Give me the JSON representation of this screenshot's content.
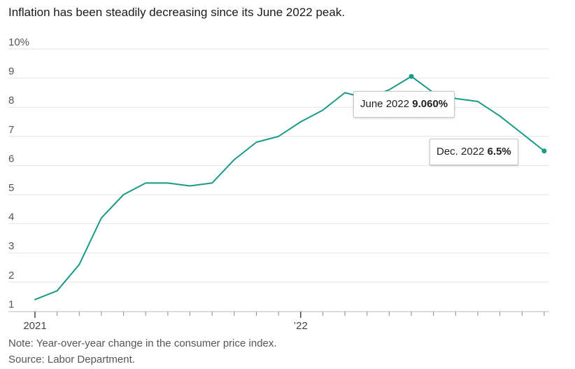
{
  "header": {
    "title": "Inflation has been steadily decreasing since its June 2022 peak."
  },
  "chart_data": {
    "type": "line",
    "title": "Inflation has been steadily decreasing since its June 2022 peak.",
    "ylim": [
      1,
      10
    ],
    "y_ticks": [
      1,
      2,
      3,
      4,
      5,
      6,
      7,
      8,
      9,
      10
    ],
    "y_tick_labels": [
      "1",
      "2",
      "3",
      "4",
      "5",
      "6",
      "7",
      "8",
      "9",
      "10%"
    ],
    "x_tick_labels": [
      {
        "month": "2021-01",
        "label": "2021"
      },
      {
        "month": "2022-01",
        "label": "’22"
      }
    ],
    "grid": true,
    "series": [
      {
        "color": "#1a9a86",
        "x": [
          "2021-01",
          "2021-02",
          "2021-03",
          "2021-04",
          "2021-05",
          "2021-06",
          "2021-07",
          "2021-08",
          "2021-09",
          "2021-10",
          "2021-11",
          "2021-12",
          "2022-01",
          "2022-02",
          "2022-03",
          "2022-04",
          "2022-05",
          "2022-06",
          "2022-07",
          "2022-08",
          "2022-09",
          "2022-10",
          "2022-11",
          "2022-12"
        ],
        "values": [
          1.4,
          1.7,
          2.6,
          4.2,
          5.0,
          5.4,
          5.4,
          5.3,
          5.4,
          6.2,
          6.8,
          7.0,
          7.5,
          7.9,
          8.5,
          8.3,
          8.6,
          9.06,
          8.5,
          8.3,
          8.2,
          7.7,
          7.1,
          6.5
        ]
      }
    ],
    "annotations": [
      {
        "x": "2022-06",
        "label": "June 2022",
        "value_text": "9.060%"
      },
      {
        "x": "2022-12",
        "label": "Dec. 2022",
        "value_text": "6.5%"
      }
    ]
  },
  "notes": {
    "note": "Note: Year-over-year change in the consumer price index.",
    "source": "Source: Labor Department."
  }
}
